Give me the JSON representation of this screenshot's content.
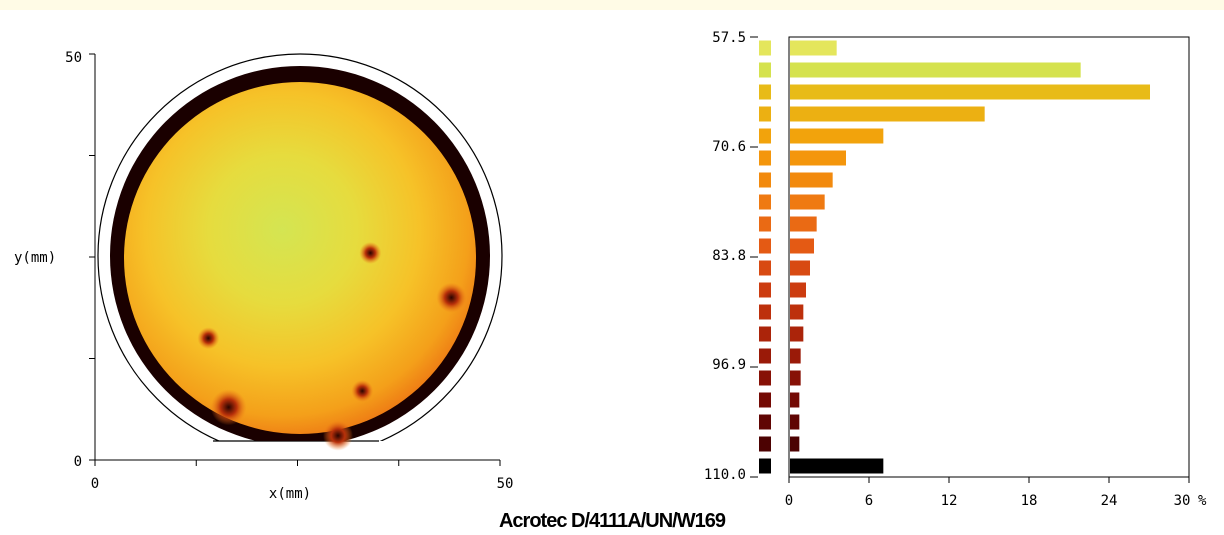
{
  "chart_data": [
    {
      "type": "heatmap",
      "name": "wafer-map",
      "xlabel": "x(mm)",
      "ylabel": "y(mm)",
      "xlim": [
        0,
        50
      ],
      "ylim": [
        0,
        50
      ],
      "x_ticks": [
        "0",
        "50"
      ],
      "y_ticks": [
        "0",
        "50"
      ],
      "spots_mm": [
        {
          "x": 34,
          "y": 25.5,
          "size": "small"
        },
        {
          "x": 44,
          "y": 20,
          "size": "medium"
        },
        {
          "x": 14,
          "y": 15,
          "size": "small"
        },
        {
          "x": 33,
          "y": 8.5,
          "size": "small"
        },
        {
          "x": 16.5,
          "y": 6.5,
          "size": "large"
        },
        {
          "x": 30,
          "y": 3,
          "size": "medium"
        }
      ],
      "colors": {
        "center": "#d2e452",
        "body": "#f6c228",
        "edge": "#f07818",
        "rim": "#1a0000"
      }
    },
    {
      "type": "bar",
      "name": "histogram",
      "orientation": "horizontal",
      "xunit": "%",
      "xlim": [
        0,
        30
      ],
      "x_ticks": [
        "0",
        "6",
        "12",
        "18",
        "24",
        "30"
      ],
      "y_ticks": [
        "57.5",
        "70.6",
        "83.8",
        "96.9",
        "110.0"
      ],
      "ylim": [
        57.5,
        110.0
      ],
      "values": [
        3.5,
        21.8,
        27.0,
        14.6,
        7.0,
        4.2,
        3.2,
        2.6,
        2.0,
        1.8,
        1.5,
        1.2,
        1.0,
        1.0,
        0.8,
        0.8,
        0.7,
        0.7,
        0.7,
        7.0
      ],
      "colors": [
        "#e4e65c",
        "#d5e24e",
        "#e8bb18",
        "#ecb012",
        "#f2a30c",
        "#f4960c",
        "#f28a0e",
        "#ef7a12",
        "#ea6a14",
        "#e45a14",
        "#d84a12",
        "#cc3c10",
        "#bd300c",
        "#ab240a",
        "#9a1a08",
        "#871106",
        "#740a04",
        "#600503",
        "#4c0202",
        "#000000"
      ]
    }
  ],
  "footer": {
    "title": "Acrotec D/4111A/UN/W169"
  }
}
